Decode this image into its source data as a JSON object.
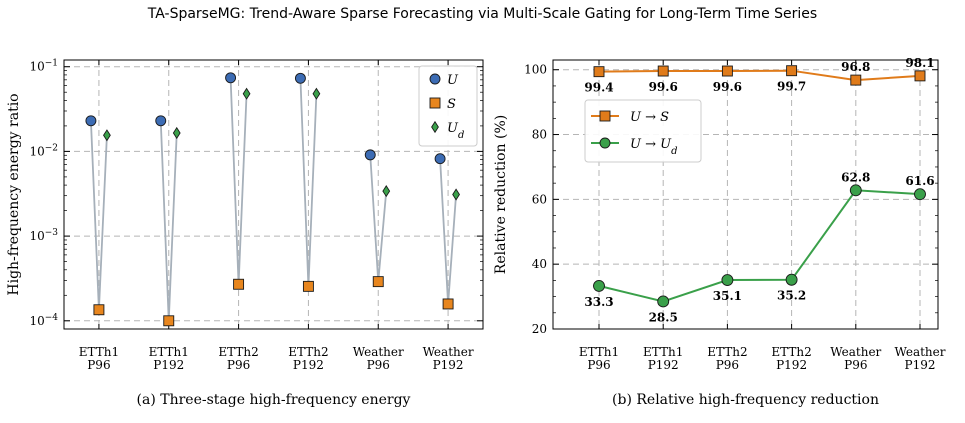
{
  "figure": {
    "title": "TA-SparseMG: Trend-Aware Sparse Forecasting via Multi-Scale Gating for Long-Term Time Series"
  },
  "chart_data": [
    {
      "type": "scatter",
      "caption": "(a) Three-stage high-frequency energy",
      "ylabel": "High-frequency energy ratio",
      "yscale": "log",
      "ylim": [
        8e-05,
        0.12
      ],
      "yticks": [
        0.0001,
        0.001,
        0.01,
        0.1
      ],
      "ytick_labels": [
        "10⁻⁴",
        "10⁻³",
        "10⁻²",
        "10⁻¹"
      ],
      "categories": [
        {
          "line1": "ETTh1",
          "line2": "P96"
        },
        {
          "line1": "ETTh1",
          "line2": "P192"
        },
        {
          "line1": "ETTh2",
          "line2": "P96"
        },
        {
          "line1": "ETTh2",
          "line2": "P192"
        },
        {
          "line1": "Weather",
          "line2": "P96"
        },
        {
          "line1": "Weather",
          "line2": "P192"
        }
      ],
      "series": [
        {
          "name": "U",
          "marker": "circle",
          "color": "#3c6cb4",
          "values": [
            0.023,
            0.023,
            0.074,
            0.073,
            0.0091,
            0.0082
          ]
        },
        {
          "name": "S",
          "marker": "square",
          "color": "#e8861e",
          "values": [
            0.000135,
            0.0001,
            0.00027,
            0.000255,
            0.00029,
            0.000158
          ]
        },
        {
          "name": "U",
          "subscript": "d",
          "marker": "diamond",
          "color": "#3aa04a",
          "values": [
            0.0155,
            0.0165,
            0.048,
            0.048,
            0.0034,
            0.0031
          ]
        }
      ],
      "connector_color": "#a6b0ba",
      "legend_position": "top-right",
      "grid": true
    },
    {
      "type": "line",
      "caption": "(b) Relative high-frequency reduction",
      "ylabel": "Relative reduction (%)",
      "ylim": [
        20,
        103
      ],
      "yticks": [
        20,
        40,
        60,
        80,
        100
      ],
      "categories": [
        {
          "line1": "ETTh1",
          "line2": "P96"
        },
        {
          "line1": "ETTh1",
          "line2": "P192"
        },
        {
          "line1": "ETTh2",
          "line2": "P96"
        },
        {
          "line1": "ETTh2",
          "line2": "P192"
        },
        {
          "line1": "Weather",
          "line2": "P96"
        },
        {
          "line1": "Weather",
          "line2": "P192"
        }
      ],
      "series": [
        {
          "from": "U",
          "to": "S",
          "to_subscript": "",
          "marker": "square",
          "color": "#e07b1a",
          "values": [
            99.4,
            99.6,
            99.6,
            99.7,
            96.8,
            98.1
          ],
          "labels": [
            "99.4",
            "99.6",
            "99.6",
            "99.7",
            "96.8",
            "98.1"
          ],
          "label_side": [
            "below",
            "below",
            "below",
            "below",
            "above",
            "above"
          ]
        },
        {
          "from": "U",
          "to": "U",
          "to_subscript": "d",
          "marker": "circle",
          "color": "#3aa04a",
          "values": [
            33.3,
            28.5,
            35.1,
            35.2,
            62.8,
            61.6
          ],
          "labels": [
            "33.3",
            "28.5",
            "35.1",
            "35.2",
            "62.8",
            "61.6"
          ],
          "label_side": [
            "below",
            "below",
            "below",
            "below",
            "above",
            "above"
          ]
        }
      ],
      "arrow": "→",
      "legend_position": "upper-left",
      "grid": true
    }
  ]
}
